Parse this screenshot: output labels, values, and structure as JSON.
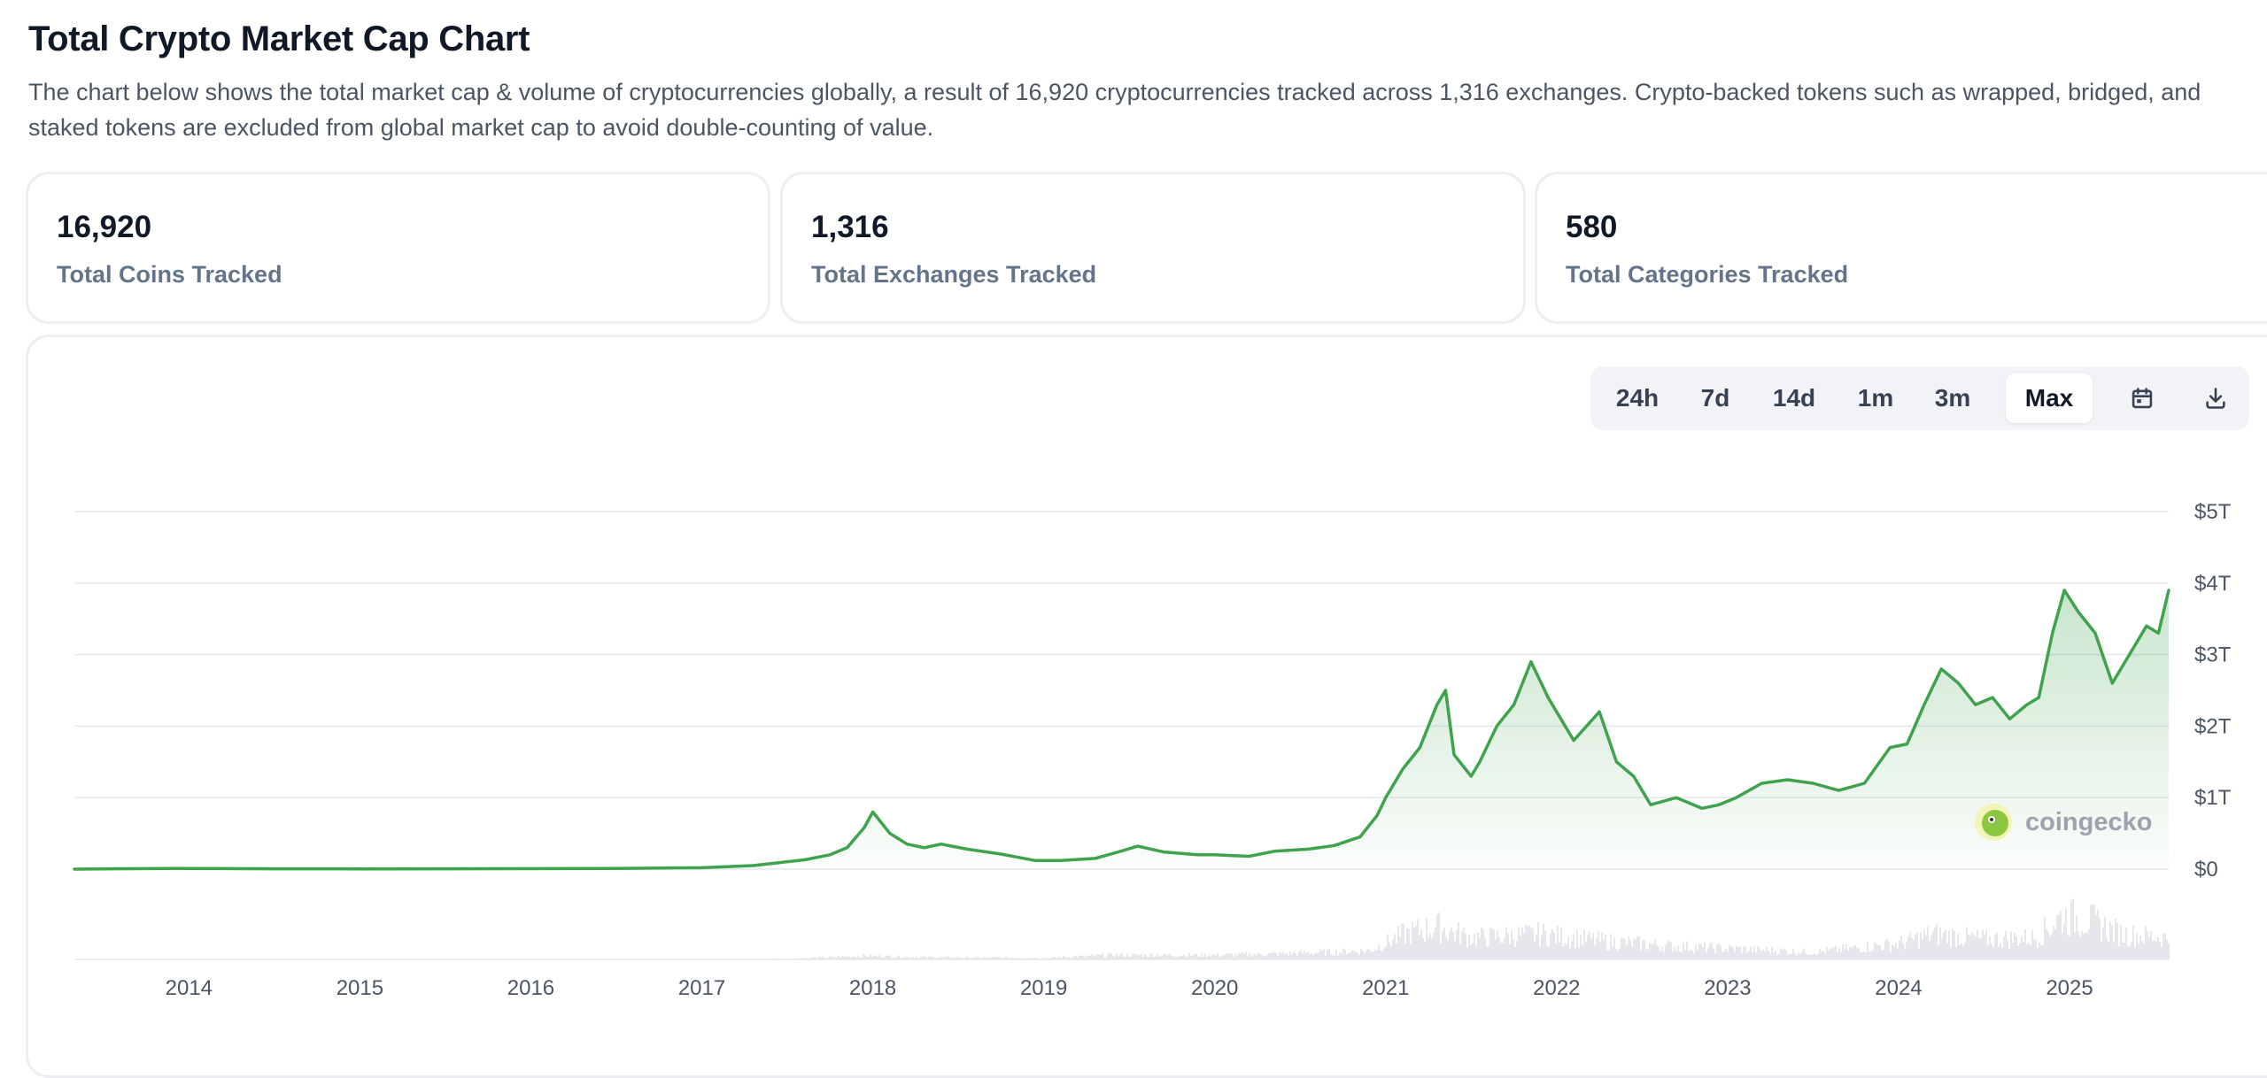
{
  "header": {
    "title": "Total Crypto Market Cap Chart",
    "description": "The chart below shows the total market cap & volume of cryptocurrencies globally, a result of 16,920 cryptocurrencies tracked across 1,316 exchanges. Crypto-backed tokens such as wrapped, bridged, and staked tokens are excluded from global market cap to avoid double-counting of value."
  },
  "stats": [
    {
      "value": "16,920",
      "label": "Total Coins Tracked"
    },
    {
      "value": "1,316",
      "label": "Total Exchanges Tracked"
    },
    {
      "value": "580",
      "label": "Total Categories Tracked"
    }
  ],
  "range_buttons": {
    "items": [
      "24h",
      "7d",
      "14d",
      "1m",
      "3m",
      "Max"
    ],
    "active": "Max",
    "calendar_icon": "calendar-icon",
    "download_icon": "download-icon"
  },
  "watermark": {
    "text": "coingecko",
    "icon": "gecko-logo-icon"
  },
  "colors": {
    "line": "#3fa34d",
    "area_top": "#3fa34d",
    "volume": "#e5e7eb",
    "grid": "#e5e7eb",
    "text": "#111827",
    "muted": "#64748b"
  },
  "chart_data": {
    "type": "area",
    "title": "",
    "xlabel": "",
    "ylabel": "",
    "x_ticks": [
      "2014",
      "2015",
      "2016",
      "2017",
      "2018",
      "2019",
      "2020",
      "2021",
      "2022",
      "2023",
      "2024",
      "2025"
    ],
    "y_ticks": [
      "$0",
      "$1T",
      "$2T",
      "$3T",
      "$4T",
      "$5T"
    ],
    "xlim": [
      2013.33,
      2025.58
    ],
    "ylim": [
      0,
      5
    ],
    "y_unit": "trillion USD",
    "y_axis_position": "right",
    "grid": true,
    "legend": "none",
    "series": [
      {
        "kind": "market_cap",
        "x": [
          2013.33,
          2013.9,
          2014.5,
          2015.0,
          2015.8,
          2016.5,
          2017.0,
          2017.3,
          2017.45,
          2017.6,
          2017.75,
          2017.85,
          2017.95,
          2018.0,
          2018.1,
          2018.2,
          2018.3,
          2018.4,
          2018.55,
          2018.75,
          2018.95,
          2019.1,
          2019.3,
          2019.45,
          2019.55,
          2019.7,
          2019.9,
          2020.0,
          2020.2,
          2020.35,
          2020.55,
          2020.7,
          2020.85,
          2020.95,
          2021.0,
          2021.1,
          2021.2,
          2021.3,
          2021.35,
          2021.4,
          2021.5,
          2021.55,
          2021.65,
          2021.75,
          2021.85,
          2021.95,
          2022.0,
          2022.1,
          2022.25,
          2022.35,
          2022.45,
          2022.55,
          2022.7,
          2022.85,
          2022.95,
          2023.05,
          2023.2,
          2023.35,
          2023.5,
          2023.65,
          2023.8,
          2023.95,
          2024.05,
          2024.15,
          2024.25,
          2024.35,
          2024.45,
          2024.55,
          2024.65,
          2024.75,
          2024.82,
          2024.9,
          2024.97,
          2025.05,
          2025.15,
          2025.25,
          2025.35,
          2025.45,
          2025.52,
          2025.58
        ],
        "values": [
          0.0,
          0.01,
          0.005,
          0.004,
          0.006,
          0.01,
          0.02,
          0.05,
          0.09,
          0.13,
          0.2,
          0.3,
          0.58,
          0.8,
          0.5,
          0.35,
          0.3,
          0.35,
          0.28,
          0.21,
          0.12,
          0.12,
          0.15,
          0.25,
          0.32,
          0.24,
          0.2,
          0.2,
          0.18,
          0.25,
          0.28,
          0.33,
          0.45,
          0.75,
          1.0,
          1.4,
          1.7,
          2.3,
          2.5,
          1.6,
          1.3,
          1.5,
          2.0,
          2.3,
          2.9,
          2.4,
          2.2,
          1.8,
          2.2,
          1.5,
          1.3,
          0.9,
          1.0,
          0.85,
          0.9,
          1.0,
          1.2,
          1.25,
          1.2,
          1.1,
          1.2,
          1.7,
          1.75,
          2.3,
          2.8,
          2.6,
          2.3,
          2.4,
          2.1,
          2.3,
          2.4,
          3.3,
          3.9,
          3.6,
          3.3,
          2.6,
          3.0,
          3.4,
          3.3,
          3.9
        ]
      },
      {
        "kind": "volume",
        "x": [
          2013.33,
          2016.5,
          2017.5,
          2017.95,
          2018.3,
          2019.0,
          2019.4,
          2020.0,
          2020.4,
          2020.9,
          2021.1,
          2021.3,
          2021.5,
          2021.9,
          2022.3,
          2022.7,
          2023.0,
          2023.5,
          2024.0,
          2024.2,
          2024.5,
          2024.8,
          2024.95,
          2025.1,
          2025.3,
          2025.58
        ],
        "values": [
          0.0,
          0.0,
          0.01,
          0.05,
          0.03,
          0.02,
          0.06,
          0.06,
          0.08,
          0.12,
          0.35,
          0.45,
          0.3,
          0.35,
          0.25,
          0.18,
          0.15,
          0.1,
          0.22,
          0.35,
          0.28,
          0.3,
          0.6,
          0.55,
          0.35,
          0.3
        ]
      }
    ]
  }
}
